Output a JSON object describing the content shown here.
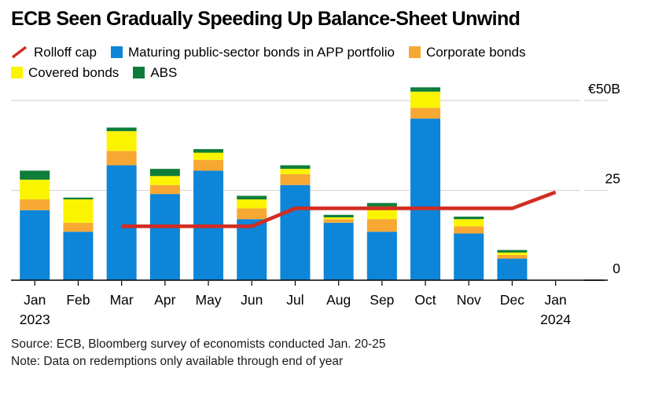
{
  "title": "ECB Seen Gradually Speeding Up Balance-Sheet Unwind",
  "source": "Source: ECB, Bloomberg survey of economists conducted Jan. 20-25",
  "note": "Note: Data on redemptions only available through end of year",
  "colors": {
    "rolloff_cap": "#d22d21",
    "public_sector": "#0d85d8",
    "corporate": "#f7a833",
    "covered": "#fbf400",
    "abs": "#0f7d3a",
    "gridline": "#d9d9d9",
    "axis": "#000000"
  },
  "legend": [
    {
      "label": "Rolloff cap",
      "glyph": "line",
      "color": "#d22d21"
    },
    {
      "label": "Maturing public-sector bonds in APP portfolio",
      "glyph": "swatch",
      "color": "#0d85d8"
    },
    {
      "label": "Corporate bonds",
      "glyph": "swatch",
      "color": "#f7a833"
    },
    {
      "label": "Covered bonds",
      "glyph": "swatch",
      "color": "#fbf400"
    },
    {
      "label": "ABS",
      "glyph": "swatch",
      "color": "#0f7d3a"
    }
  ],
  "chart_data": {
    "type": "bar",
    "stacked": true,
    "unit": "EUR billions",
    "categories": [
      "Jan",
      "Feb",
      "Mar",
      "Apr",
      "May",
      "Jun",
      "Jul",
      "Aug",
      "Sep",
      "Oct",
      "Nov",
      "Dec",
      "Jan"
    ],
    "year_sublabels": [
      {
        "index": 0,
        "label": "2023"
      },
      {
        "index": 12,
        "label": "2024"
      }
    ],
    "series": [
      {
        "name": "Maturing public-sector bonds in APP portfolio",
        "color": "#0d85d8",
        "values": [
          19.5,
          13.5,
          32,
          24,
          30.5,
          17,
          26.5,
          16,
          13.5,
          45,
          13,
          6,
          null
        ]
      },
      {
        "name": "Corporate bonds",
        "color": "#f7a833",
        "values": [
          3,
          2.5,
          4,
          2.5,
          3,
          3,
          3,
          1,
          3.5,
          3,
          2,
          1,
          null
        ]
      },
      {
        "name": "Covered bonds",
        "color": "#fbf400",
        "values": [
          5.5,
          6.5,
          5.5,
          2.5,
          2,
          2.5,
          1.5,
          0.5,
          3.5,
          4.5,
          2,
          0.7,
          null
        ]
      },
      {
        "name": "ABS",
        "color": "#0f7d3a",
        "values": [
          2.5,
          0.5,
          1,
          2,
          1,
          1,
          1,
          0.7,
          1,
          1.2,
          0.7,
          0.7,
          null
        ]
      }
    ],
    "line_series": {
      "name": "Rolloff cap",
      "color": "#d22d21",
      "values": [
        null,
        null,
        15,
        15,
        15,
        15,
        20,
        20,
        20,
        20,
        20,
        20,
        24.5
      ]
    },
    "y_ticks": [
      {
        "value": 50,
        "label": "€50B"
      },
      {
        "value": 25,
        "label": "25"
      },
      {
        "value": 0,
        "label": "0"
      }
    ],
    "ylim": [
      0,
      55
    ],
    "grid": "horizontal",
    "legend_position": "top"
  }
}
